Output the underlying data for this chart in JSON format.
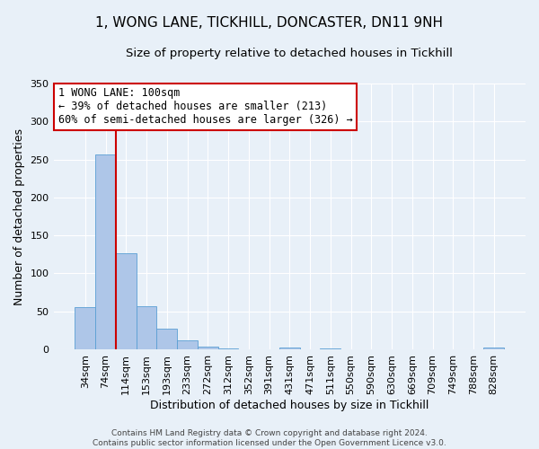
{
  "title": "1, WONG LANE, TICKHILL, DONCASTER, DN11 9NH",
  "subtitle": "Size of property relative to detached houses in Tickhill",
  "xlabel": "Distribution of detached houses by size in Tickhill",
  "ylabel": "Number of detached properties",
  "footer_lines": [
    "Contains HM Land Registry data © Crown copyright and database right 2024.",
    "Contains public sector information licensed under the Open Government Licence v3.0."
  ],
  "bin_labels": [
    "34sqm",
    "74sqm",
    "114sqm",
    "153sqm",
    "193sqm",
    "233sqm",
    "272sqm",
    "312sqm",
    "352sqm",
    "391sqm",
    "431sqm",
    "471sqm",
    "511sqm",
    "550sqm",
    "590sqm",
    "630sqm",
    "669sqm",
    "709sqm",
    "749sqm",
    "788sqm",
    "828sqm"
  ],
  "bar_heights": [
    55,
    257,
    127,
    57,
    27,
    12,
    4,
    1,
    0,
    0,
    2,
    0,
    1,
    0,
    0,
    0,
    0,
    0,
    0,
    0,
    2
  ],
  "bar_color": "#aec6e8",
  "bar_edge_color": "#5a9fd4",
  "ylim": [
    0,
    350
  ],
  "yticks": [
    0,
    50,
    100,
    150,
    200,
    250,
    300,
    350
  ],
  "vline_color": "#cc0000",
  "annotation_text": "1 WONG LANE: 100sqm\n← 39% of detached houses are smaller (213)\n60% of semi-detached houses are larger (326) →",
  "annotation_box_color": "#ffffff",
  "annotation_box_edge_color": "#cc0000",
  "background_color": "#e8f0f8",
  "title_fontsize": 11,
  "subtitle_fontsize": 9.5,
  "label_fontsize": 9,
  "tick_fontsize": 8,
  "footer_fontsize": 6.5,
  "grid_color": "#d0dce8"
}
